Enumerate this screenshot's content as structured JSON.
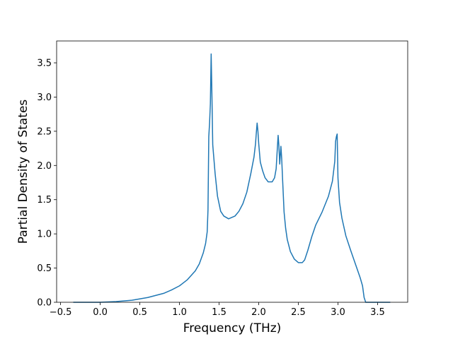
{
  "chart_data": {
    "type": "line",
    "title": "",
    "xlabel": "Frequency (THz)",
    "ylabel": "Partial Density of States",
    "xlim": [
      -0.55,
      3.88
    ],
    "ylim": [
      0.0,
      3.82
    ],
    "xticks": [
      -0.5,
      0.0,
      0.5,
      1.0,
      1.5,
      2.0,
      2.5,
      3.0,
      3.5
    ],
    "xtick_labels": [
      "−0.5",
      "0.0",
      "0.5",
      "1.0",
      "1.5",
      "2.0",
      "2.5",
      "3.0",
      "3.5"
    ],
    "yticks": [
      0.0,
      0.5,
      1.0,
      1.5,
      2.0,
      2.5,
      3.0,
      3.5
    ],
    "ytick_labels": [
      "0.0",
      "0.5",
      "1.0",
      "1.5",
      "2.0",
      "2.5",
      "3.0",
      "3.5"
    ],
    "grid": false,
    "legend": "none",
    "color": "#1f77b4",
    "series": [
      {
        "x": [
          -0.34,
          0.0,
          0.2,
          0.4,
          0.6,
          0.8,
          0.9,
          1.0,
          1.1,
          1.2,
          1.25,
          1.3,
          1.33,
          1.35,
          1.36,
          1.37,
          1.38,
          1.39,
          1.4,
          1.41,
          1.42,
          1.45,
          1.48,
          1.52,
          1.56,
          1.62,
          1.7,
          1.75,
          1.8,
          1.85,
          1.9,
          1.94,
          1.96,
          1.97,
          1.98,
          1.99,
          2.0,
          2.02,
          2.05,
          2.08,
          2.12,
          2.17,
          2.2,
          2.22,
          2.235,
          2.245,
          2.255,
          2.265,
          2.28,
          2.29,
          2.3,
          2.32,
          2.34,
          2.36,
          2.4,
          2.45,
          2.5,
          2.55,
          2.58,
          2.62,
          2.67,
          2.72,
          2.8,
          2.88,
          2.93,
          2.96,
          2.97,
          2.98,
          2.99,
          3.0,
          3.02,
          3.05,
          3.1,
          3.16,
          3.22,
          3.28,
          3.31,
          3.33,
          3.35,
          3.45,
          3.66
        ],
        "y": [
          0.0,
          0.0,
          0.01,
          0.03,
          0.07,
          0.13,
          0.18,
          0.24,
          0.33,
          0.46,
          0.56,
          0.72,
          0.86,
          1.03,
          1.35,
          2.42,
          2.62,
          2.9,
          3.63,
          3.0,
          2.3,
          1.88,
          1.55,
          1.33,
          1.26,
          1.22,
          1.26,
          1.33,
          1.44,
          1.61,
          1.88,
          2.12,
          2.32,
          2.48,
          2.62,
          2.5,
          2.32,
          2.05,
          1.92,
          1.82,
          1.76,
          1.76,
          1.82,
          1.95,
          2.25,
          2.44,
          2.28,
          2.02,
          2.28,
          2.1,
          1.83,
          1.32,
          1.08,
          0.92,
          0.74,
          0.63,
          0.58,
          0.58,
          0.62,
          0.76,
          0.96,
          1.13,
          1.32,
          1.55,
          1.77,
          2.06,
          2.35,
          2.42,
          2.46,
          1.82,
          1.46,
          1.23,
          0.97,
          0.76,
          0.56,
          0.36,
          0.24,
          0.07,
          0.0,
          0.0,
          0.0
        ]
      }
    ]
  }
}
